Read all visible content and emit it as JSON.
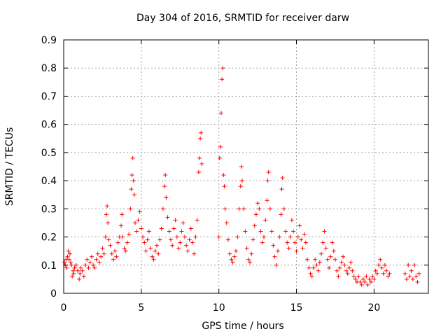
{
  "chart_data": {
    "type": "scatter",
    "title": "Day 304 of 2016, SRMTID for receiver darw",
    "xlabel": "GPS time / hours",
    "ylabel": "SRMTID / TECUs",
    "xlim": [
      0,
      23.5
    ],
    "ylim": [
      0,
      0.9
    ],
    "x_ticks": [
      0,
      5,
      10,
      15,
      20
    ],
    "x_tick_labels": [
      "0",
      "5",
      "10",
      "15",
      "20"
    ],
    "y_ticks": [
      0,
      0.1,
      0.2,
      0.3,
      0.4,
      0.5,
      0.6,
      0.7,
      0.8,
      0.9
    ],
    "y_tick_labels": [
      "0",
      "0.1",
      "0.2",
      "0.3",
      "0.4",
      "0.5",
      "0.6",
      "0.7",
      "0.8",
      "0.9"
    ],
    "grid": true,
    "marker": "+",
    "color": "#ff0000",
    "series": [
      {
        "name": "SRMTID",
        "points": [
          [
            0.05,
            0.11
          ],
          [
            0.1,
            0.1
          ],
          [
            0.15,
            0.12
          ],
          [
            0.2,
            0.09
          ],
          [
            0.25,
            0.13
          ],
          [
            0.3,
            0.15
          ],
          [
            0.35,
            0.12
          ],
          [
            0.4,
            0.14
          ],
          [
            0.45,
            0.11
          ],
          [
            0.5,
            0.1
          ],
          [
            0.55,
            0.06
          ],
          [
            0.6,
            0.08
          ],
          [
            0.65,
            0.07
          ],
          [
            0.7,
            0.09
          ],
          [
            0.8,
            0.1
          ],
          [
            0.9,
            0.08
          ],
          [
            1.0,
            0.05
          ],
          [
            1.05,
            0.07
          ],
          [
            1.1,
            0.09
          ],
          [
            1.2,
            0.08
          ],
          [
            1.3,
            0.06
          ],
          [
            1.4,
            0.1
          ],
          [
            1.5,
            0.12
          ],
          [
            1.6,
            0.09
          ],
          [
            1.7,
            0.11
          ],
          [
            1.8,
            0.13
          ],
          [
            1.9,
            0.1
          ],
          [
            2.0,
            0.09
          ],
          [
            2.1,
            0.12
          ],
          [
            2.2,
            0.14
          ],
          [
            2.3,
            0.11
          ],
          [
            2.4,
            0.13
          ],
          [
            2.5,
            0.16
          ],
          [
            2.6,
            0.14
          ],
          [
            2.7,
            0.2
          ],
          [
            2.75,
            0.28
          ],
          [
            2.8,
            0.31
          ],
          [
            2.85,
            0.25
          ],
          [
            2.9,
            0.19
          ],
          [
            3.0,
            0.17
          ],
          [
            3.1,
            0.14
          ],
          [
            3.2,
            0.12
          ],
          [
            3.3,
            0.15
          ],
          [
            3.4,
            0.13
          ],
          [
            3.5,
            0.18
          ],
          [
            3.6,
            0.2
          ],
          [
            3.7,
            0.24
          ],
          [
            3.75,
            0.28
          ],
          [
            3.8,
            0.2
          ],
          [
            3.9,
            0.16
          ],
          [
            4.0,
            0.15
          ],
          [
            4.1,
            0.18
          ],
          [
            4.2,
            0.21
          ],
          [
            4.3,
            0.3
          ],
          [
            4.35,
            0.37
          ],
          [
            4.4,
            0.42
          ],
          [
            4.45,
            0.48
          ],
          [
            4.5,
            0.4
          ],
          [
            4.55,
            0.35
          ],
          [
            4.6,
            0.25
          ],
          [
            4.7,
            0.22
          ],
          [
            4.8,
            0.26
          ],
          [
            4.9,
            0.29
          ],
          [
            5.0,
            0.23
          ],
          [
            5.1,
            0.2
          ],
          [
            5.2,
            0.18
          ],
          [
            5.3,
            0.15
          ],
          [
            5.4,
            0.19
          ],
          [
            5.5,
            0.22
          ],
          [
            5.6,
            0.16
          ],
          [
            5.7,
            0.13
          ],
          [
            5.8,
            0.12
          ],
          [
            5.9,
            0.15
          ],
          [
            6.0,
            0.17
          ],
          [
            6.1,
            0.14
          ],
          [
            6.2,
            0.19
          ],
          [
            6.3,
            0.23
          ],
          [
            6.4,
            0.3
          ],
          [
            6.5,
            0.38
          ],
          [
            6.55,
            0.42
          ],
          [
            6.6,
            0.34
          ],
          [
            6.7,
            0.27
          ],
          [
            6.8,
            0.22
          ],
          [
            6.9,
            0.19
          ],
          [
            7.0,
            0.17
          ],
          [
            7.1,
            0.23
          ],
          [
            7.2,
            0.26
          ],
          [
            7.3,
            0.2
          ],
          [
            7.4,
            0.16
          ],
          [
            7.5,
            0.18
          ],
          [
            7.6,
            0.22
          ],
          [
            7.7,
            0.25
          ],
          [
            7.8,
            0.2
          ],
          [
            7.9,
            0.17
          ],
          [
            8.0,
            0.15
          ],
          [
            8.1,
            0.19
          ],
          [
            8.2,
            0.23
          ],
          [
            8.3,
            0.18
          ],
          [
            8.4,
            0.14
          ],
          [
            8.5,
            0.2
          ],
          [
            8.6,
            0.26
          ],
          [
            8.7,
            0.43
          ],
          [
            8.75,
            0.48
          ],
          [
            8.8,
            0.55
          ],
          [
            8.85,
            0.57
          ],
          [
            8.9,
            0.46
          ],
          [
            10.0,
            0.2
          ],
          [
            10.05,
            0.48
          ],
          [
            10.1,
            0.52
          ],
          [
            10.15,
            0.64
          ],
          [
            10.2,
            0.76
          ],
          [
            10.25,
            0.8
          ],
          [
            10.3,
            0.42
          ],
          [
            10.35,
            0.38
          ],
          [
            10.4,
            0.3
          ],
          [
            10.5,
            0.25
          ],
          [
            10.6,
            0.19
          ],
          [
            10.7,
            0.14
          ],
          [
            10.8,
            0.12
          ],
          [
            10.9,
            0.11
          ],
          [
            11.0,
            0.13
          ],
          [
            11.1,
            0.15
          ],
          [
            11.2,
            0.2
          ],
          [
            11.3,
            0.3
          ],
          [
            11.4,
            0.38
          ],
          [
            11.45,
            0.45
          ],
          [
            11.5,
            0.4
          ],
          [
            11.6,
            0.3
          ],
          [
            11.7,
            0.22
          ],
          [
            11.8,
            0.16
          ],
          [
            11.9,
            0.12
          ],
          [
            12.0,
            0.11
          ],
          [
            12.1,
            0.14
          ],
          [
            12.2,
            0.19
          ],
          [
            12.3,
            0.24
          ],
          [
            12.4,
            0.28
          ],
          [
            12.5,
            0.32
          ],
          [
            12.6,
            0.3
          ],
          [
            12.7,
            0.22
          ],
          [
            12.8,
            0.18
          ],
          [
            12.9,
            0.2
          ],
          [
            13.0,
            0.26
          ],
          [
            13.1,
            0.33
          ],
          [
            13.15,
            0.4
          ],
          [
            13.2,
            0.43
          ],
          [
            13.3,
            0.3
          ],
          [
            13.4,
            0.22
          ],
          [
            13.5,
            0.17
          ],
          [
            13.6,
            0.13
          ],
          [
            13.7,
            0.1
          ],
          [
            13.8,
            0.15
          ],
          [
            13.9,
            0.2
          ],
          [
            14.0,
            0.28
          ],
          [
            14.05,
            0.37
          ],
          [
            14.1,
            0.41
          ],
          [
            14.2,
            0.3
          ],
          [
            14.3,
            0.22
          ],
          [
            14.4,
            0.18
          ],
          [
            14.5,
            0.16
          ],
          [
            14.6,
            0.2
          ],
          [
            14.7,
            0.26
          ],
          [
            14.8,
            0.22
          ],
          [
            14.9,
            0.18
          ],
          [
            15.0,
            0.15
          ],
          [
            15.1,
            0.2
          ],
          [
            15.2,
            0.24
          ],
          [
            15.3,
            0.19
          ],
          [
            15.4,
            0.16
          ],
          [
            15.5,
            0.21
          ],
          [
            15.6,
            0.18
          ],
          [
            15.7,
            0.12
          ],
          [
            15.8,
            0.09
          ],
          [
            15.9,
            0.07
          ],
          [
            16.0,
            0.06
          ],
          [
            16.1,
            0.09
          ],
          [
            16.2,
            0.12
          ],
          [
            16.3,
            0.1
          ],
          [
            16.4,
            0.08
          ],
          [
            16.5,
            0.11
          ],
          [
            16.6,
            0.14
          ],
          [
            16.7,
            0.18
          ],
          [
            16.8,
            0.22
          ],
          [
            16.9,
            0.16
          ],
          [
            17.0,
            0.12
          ],
          [
            17.1,
            0.09
          ],
          [
            17.2,
            0.13
          ],
          [
            17.3,
            0.18
          ],
          [
            17.4,
            0.15
          ],
          [
            17.5,
            0.12
          ],
          [
            17.6,
            0.08
          ],
          [
            17.7,
            0.06
          ],
          [
            17.8,
            0.09
          ],
          [
            17.9,
            0.11
          ],
          [
            18.0,
            0.13
          ],
          [
            18.1,
            0.1
          ],
          [
            18.2,
            0.08
          ],
          [
            18.3,
            0.07
          ],
          [
            18.4,
            0.09
          ],
          [
            18.5,
            0.11
          ],
          [
            18.6,
            0.08
          ],
          [
            18.7,
            0.06
          ],
          [
            18.8,
            0.05
          ],
          [
            18.9,
            0.04
          ],
          [
            19.0,
            0.06
          ],
          [
            19.1,
            0.04
          ],
          [
            19.2,
            0.03
          ],
          [
            19.3,
            0.05
          ],
          [
            19.4,
            0.04
          ],
          [
            19.5,
            0.06
          ],
          [
            19.6,
            0.03
          ],
          [
            19.7,
            0.05
          ],
          [
            19.8,
            0.04
          ],
          [
            19.9,
            0.06
          ],
          [
            20.0,
            0.05
          ],
          [
            20.1,
            0.08
          ],
          [
            20.2,
            0.07
          ],
          [
            20.3,
            0.1
          ],
          [
            20.4,
            0.12
          ],
          [
            20.5,
            0.09
          ],
          [
            20.6,
            0.07
          ],
          [
            20.7,
            0.1
          ],
          [
            20.8,
            0.08
          ],
          [
            20.9,
            0.06
          ],
          [
            21.0,
            0.07
          ],
          [
            22.0,
            0.07
          ],
          [
            22.1,
            0.05
          ],
          [
            22.2,
            0.1
          ],
          [
            22.3,
            0.06
          ],
          [
            22.4,
            0.08
          ],
          [
            22.5,
            0.05
          ],
          [
            22.6,
            0.1
          ],
          [
            22.7,
            0.06
          ],
          [
            22.8,
            0.04
          ],
          [
            22.9,
            0.07
          ]
        ]
      }
    ]
  }
}
